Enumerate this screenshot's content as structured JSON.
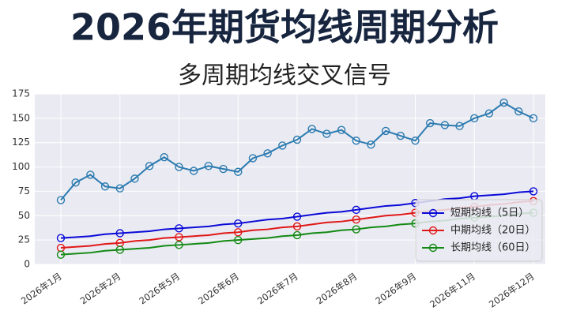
{
  "chart_data": {
    "type": "line",
    "title": "2026年期货均线周期分析",
    "subtitle": "多周期均线交叉信号",
    "categories": [
      "2026年1月",
      null,
      null,
      null,
      "2026年2月",
      null,
      null,
      null,
      "2026年5月",
      null,
      null,
      null,
      "2026年6月",
      null,
      null,
      null,
      "2026年7月",
      null,
      null,
      null,
      "2026年8月",
      null,
      null,
      null,
      "2026年9月",
      null,
      null,
      null,
      "2026年11月",
      null,
      null,
      null,
      "2026年12月"
    ],
    "series": [
      {
        "color": "#2b7bb0",
        "values": [
          66,
          84,
          92,
          80,
          78,
          88,
          101,
          110,
          100,
          96,
          101,
          98,
          95,
          109,
          114,
          122,
          128,
          139,
          134,
          138,
          127,
          123,
          137,
          132,
          127,
          145,
          143,
          142,
          150,
          155,
          166,
          157,
          150
        ]
      },
      {
        "name": "短期均线（5日）",
        "color": "#0a0ad8",
        "values": [
          27,
          28,
          29,
          31,
          32,
          33,
          34,
          36,
          37,
          38,
          39,
          41,
          42,
          44,
          46,
          47,
          49,
          51,
          53,
          54,
          56,
          58,
          60,
          61,
          63,
          65,
          67,
          68,
          70,
          71,
          72,
          74,
          75
        ]
      },
      {
        "name": "中期均线（20日）",
        "color": "#e01818",
        "values": [
          17,
          18,
          19,
          21,
          22,
          24,
          25,
          27,
          28,
          29,
          30,
          32,
          33,
          35,
          36,
          38,
          39,
          41,
          43,
          44,
          46,
          48,
          50,
          51,
          53,
          55,
          56,
          58,
          59,
          61,
          62,
          64,
          65
        ]
      },
      {
        "name": "长期均线（60日）",
        "color": "#138a13",
        "values": [
          10,
          11,
          12,
          14,
          15,
          16,
          17,
          19,
          20,
          21,
          22,
          24,
          25,
          26,
          27,
          29,
          30,
          32,
          33,
          35,
          36,
          38,
          39,
          41,
          42,
          44,
          45,
          47,
          48,
          49,
          50,
          52,
          53
        ]
      }
    ],
    "ylim": [
      0,
      175
    ],
    "yticks": [
      0,
      25,
      50,
      75,
      100,
      125,
      150,
      175
    ],
    "grid": true,
    "legend": "lower right"
  }
}
